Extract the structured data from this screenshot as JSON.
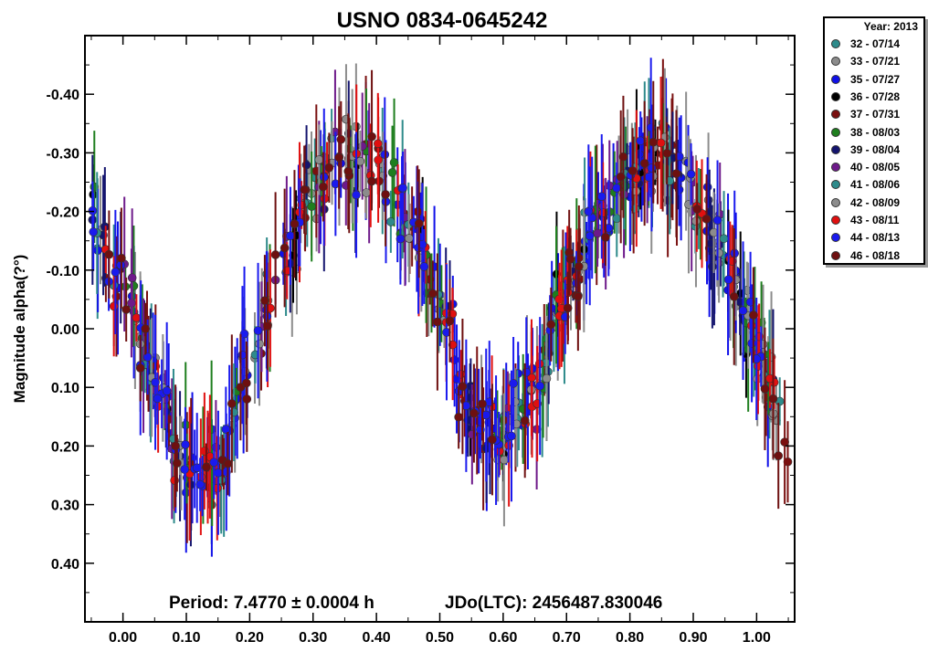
{
  "chart_data": {
    "type": "scatter",
    "title": "USNO 0834-0645242",
    "xlabel": "",
    "ylabel": "Magnitude alpha(?°)",
    "xlim": [
      -0.06,
      1.06
    ],
    "ylim": [
      0.5,
      -0.5
    ],
    "y_inverted": true,
    "x_ticks": [
      0.0,
      0.1,
      0.2,
      0.3,
      0.4,
      0.5,
      0.6,
      0.7,
      0.8,
      0.9,
      1.0
    ],
    "x_tick_labels": [
      "0.00",
      "0.10",
      "0.20",
      "0.30",
      "0.40",
      "0.50",
      "0.60",
      "0.70",
      "0.80",
      "0.90",
      "1.00"
    ],
    "y_ticks": [
      -0.4,
      -0.3,
      -0.2,
      -0.1,
      0.0,
      0.1,
      0.2,
      0.3,
      0.4
    ],
    "y_tick_labels": [
      "-0.40",
      "-0.30",
      "-0.20",
      "-0.10",
      "0.00",
      "0.10",
      "0.20",
      "0.30",
      "0.40"
    ],
    "grid": false,
    "legend_position": "outside-top-right",
    "legend_title": "Year: 2013",
    "annotations": {
      "period": "Period: 7.4770 ± 0.0004 h",
      "epoch": "JDo(LTC): 2456487.830046"
    },
    "curve_model": {
      "description_of_values": "mean magnitude vs phase, two humps",
      "phase": [
        -0.05,
        0.0,
        0.05,
        0.1,
        0.15,
        0.2,
        0.25,
        0.3,
        0.35,
        0.4,
        0.45,
        0.5,
        0.55,
        0.6,
        0.65,
        0.7,
        0.75,
        0.8,
        0.85,
        0.9,
        0.95,
        1.0,
        1.05
      ],
      "magnitude": [
        -0.18,
        -0.08,
        0.08,
        0.24,
        0.24,
        0.05,
        -0.12,
        -0.24,
        -0.3,
        -0.28,
        -0.18,
        -0.04,
        0.14,
        0.18,
        0.1,
        -0.06,
        -0.18,
        -0.26,
        -0.3,
        -0.22,
        -0.12,
        0.02,
        0.2
      ],
      "scatter": 0.06,
      "error_bar": 0.08
    },
    "series": [
      {
        "name": "32 - 07/14",
        "color": "#2e8b8b",
        "count": 28
      },
      {
        "name": "33 - 07/21",
        "color": "#8c8c8c",
        "count": 60
      },
      {
        "name": "35 - 07/27",
        "color": "#1010e8",
        "count": 80
      },
      {
        "name": "36 - 07/28",
        "color": "#000000",
        "count": 16
      },
      {
        "name": "37 - 07/31",
        "color": "#7a1010",
        "count": 60
      },
      {
        "name": "38 - 08/03",
        "color": "#1e7e1e",
        "count": 50
      },
      {
        "name": "39 - 08/04",
        "color": "#14146e",
        "count": 40
      },
      {
        "name": "40 - 08/05",
        "color": "#6e1a8a",
        "count": 30
      },
      {
        "name": "41 - 08/06",
        "color": "#2e8b8b",
        "count": 30
      },
      {
        "name": "42 - 08/09",
        "color": "#8c8c8c",
        "count": 40
      },
      {
        "name": "43 - 08/11",
        "color": "#e01010",
        "count": 60
      },
      {
        "name": "44 - 08/13",
        "color": "#1a1aee",
        "count": 80
      },
      {
        "name": "46 - 08/18",
        "color": "#6e1010",
        "count": 60
      }
    ]
  }
}
